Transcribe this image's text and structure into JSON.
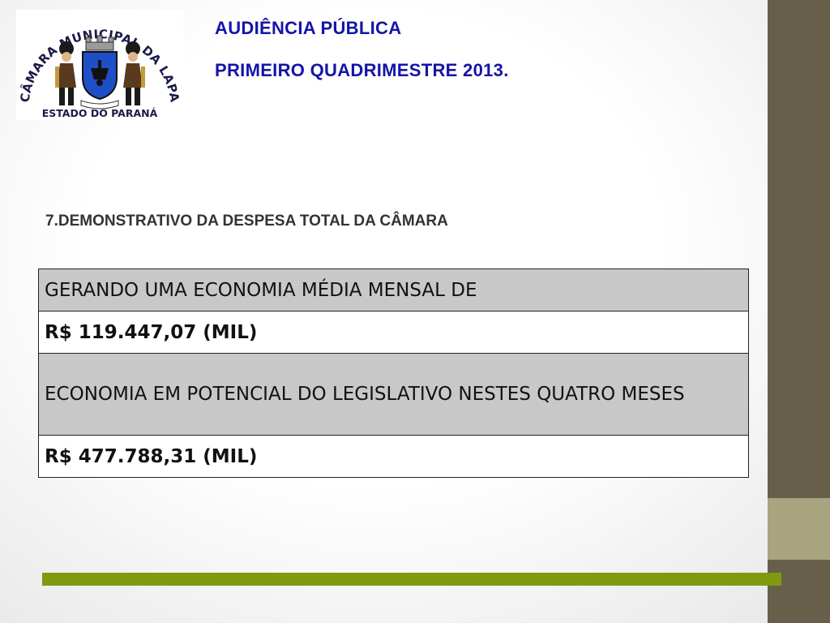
{
  "logo": {
    "arc_text": "CÂMARA MUNICIPAL DA LAPA",
    "bottom_text": "ESTADO DO PARANÁ",
    "alt": "Brasão da Câmara Municipal da Lapa"
  },
  "header": {
    "line1": "AUDIÊNCIA PÚBLICA",
    "line2": "PRIMEIRO QUADRIMESTRE 2013."
  },
  "section": {
    "heading": "7.DEMONSTRATIVO DA DESPESA TOTAL DA CÂMARA"
  },
  "table": {
    "rows": [
      "GERANDO UMA ECONOMIA MÉDIA MENSAL DE",
      "R$ 119.447,07 (MIL)",
      "ECONOMIA EM POTENCIAL DO LEGISLATIVO NESTES QUATRO MESES",
      "R$ 477.788,31 (MIL)"
    ]
  },
  "colors": {
    "title_blue": "#1414a8",
    "sidebar_dark": "#675f49",
    "sidebar_accent": "#a8a47f",
    "bottom_line_green": "#809a10",
    "row_grey": "#c8c8c8"
  }
}
